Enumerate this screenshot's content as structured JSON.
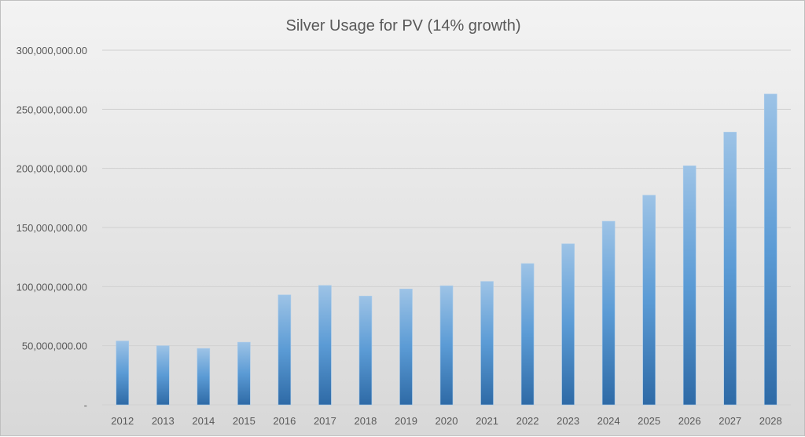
{
  "chart_data": {
    "type": "bar",
    "title": "Silver Usage for PV (14% growth)",
    "xlabel": "",
    "ylabel": "",
    "ylim": [
      0,
      300000000
    ],
    "yticks": [
      0,
      50000000,
      100000000,
      150000000,
      200000000,
      250000000,
      300000000
    ],
    "ytick_labels": [
      "-",
      "50,000,000.00",
      "100,000,000.00",
      "150,000,000.00",
      "200,000,000.00",
      "250,000,000.00",
      "300,000,000.00"
    ],
    "grid": true,
    "legend": "none",
    "categories": [
      "2012",
      "2013",
      "2014",
      "2015",
      "2016",
      "2017",
      "2018",
      "2019",
      "2020",
      "2021",
      "2022",
      "2023",
      "2024",
      "2025",
      "2026",
      "2027",
      "2028"
    ],
    "values": [
      54000000,
      50000000,
      47700000,
      53000000,
      93000000,
      101000000,
      92000000,
      98000000,
      100700000,
      104400000,
      119500000,
      136200000,
      155300000,
      177300000,
      202200000,
      230700000,
      262900000
    ],
    "colors": {
      "bar_top": "#9dc3e6",
      "bar_mid": "#5b9bd5",
      "bar_bottom": "#2e6aa6",
      "grid": "#d0d0d0",
      "text": "#595959"
    }
  }
}
